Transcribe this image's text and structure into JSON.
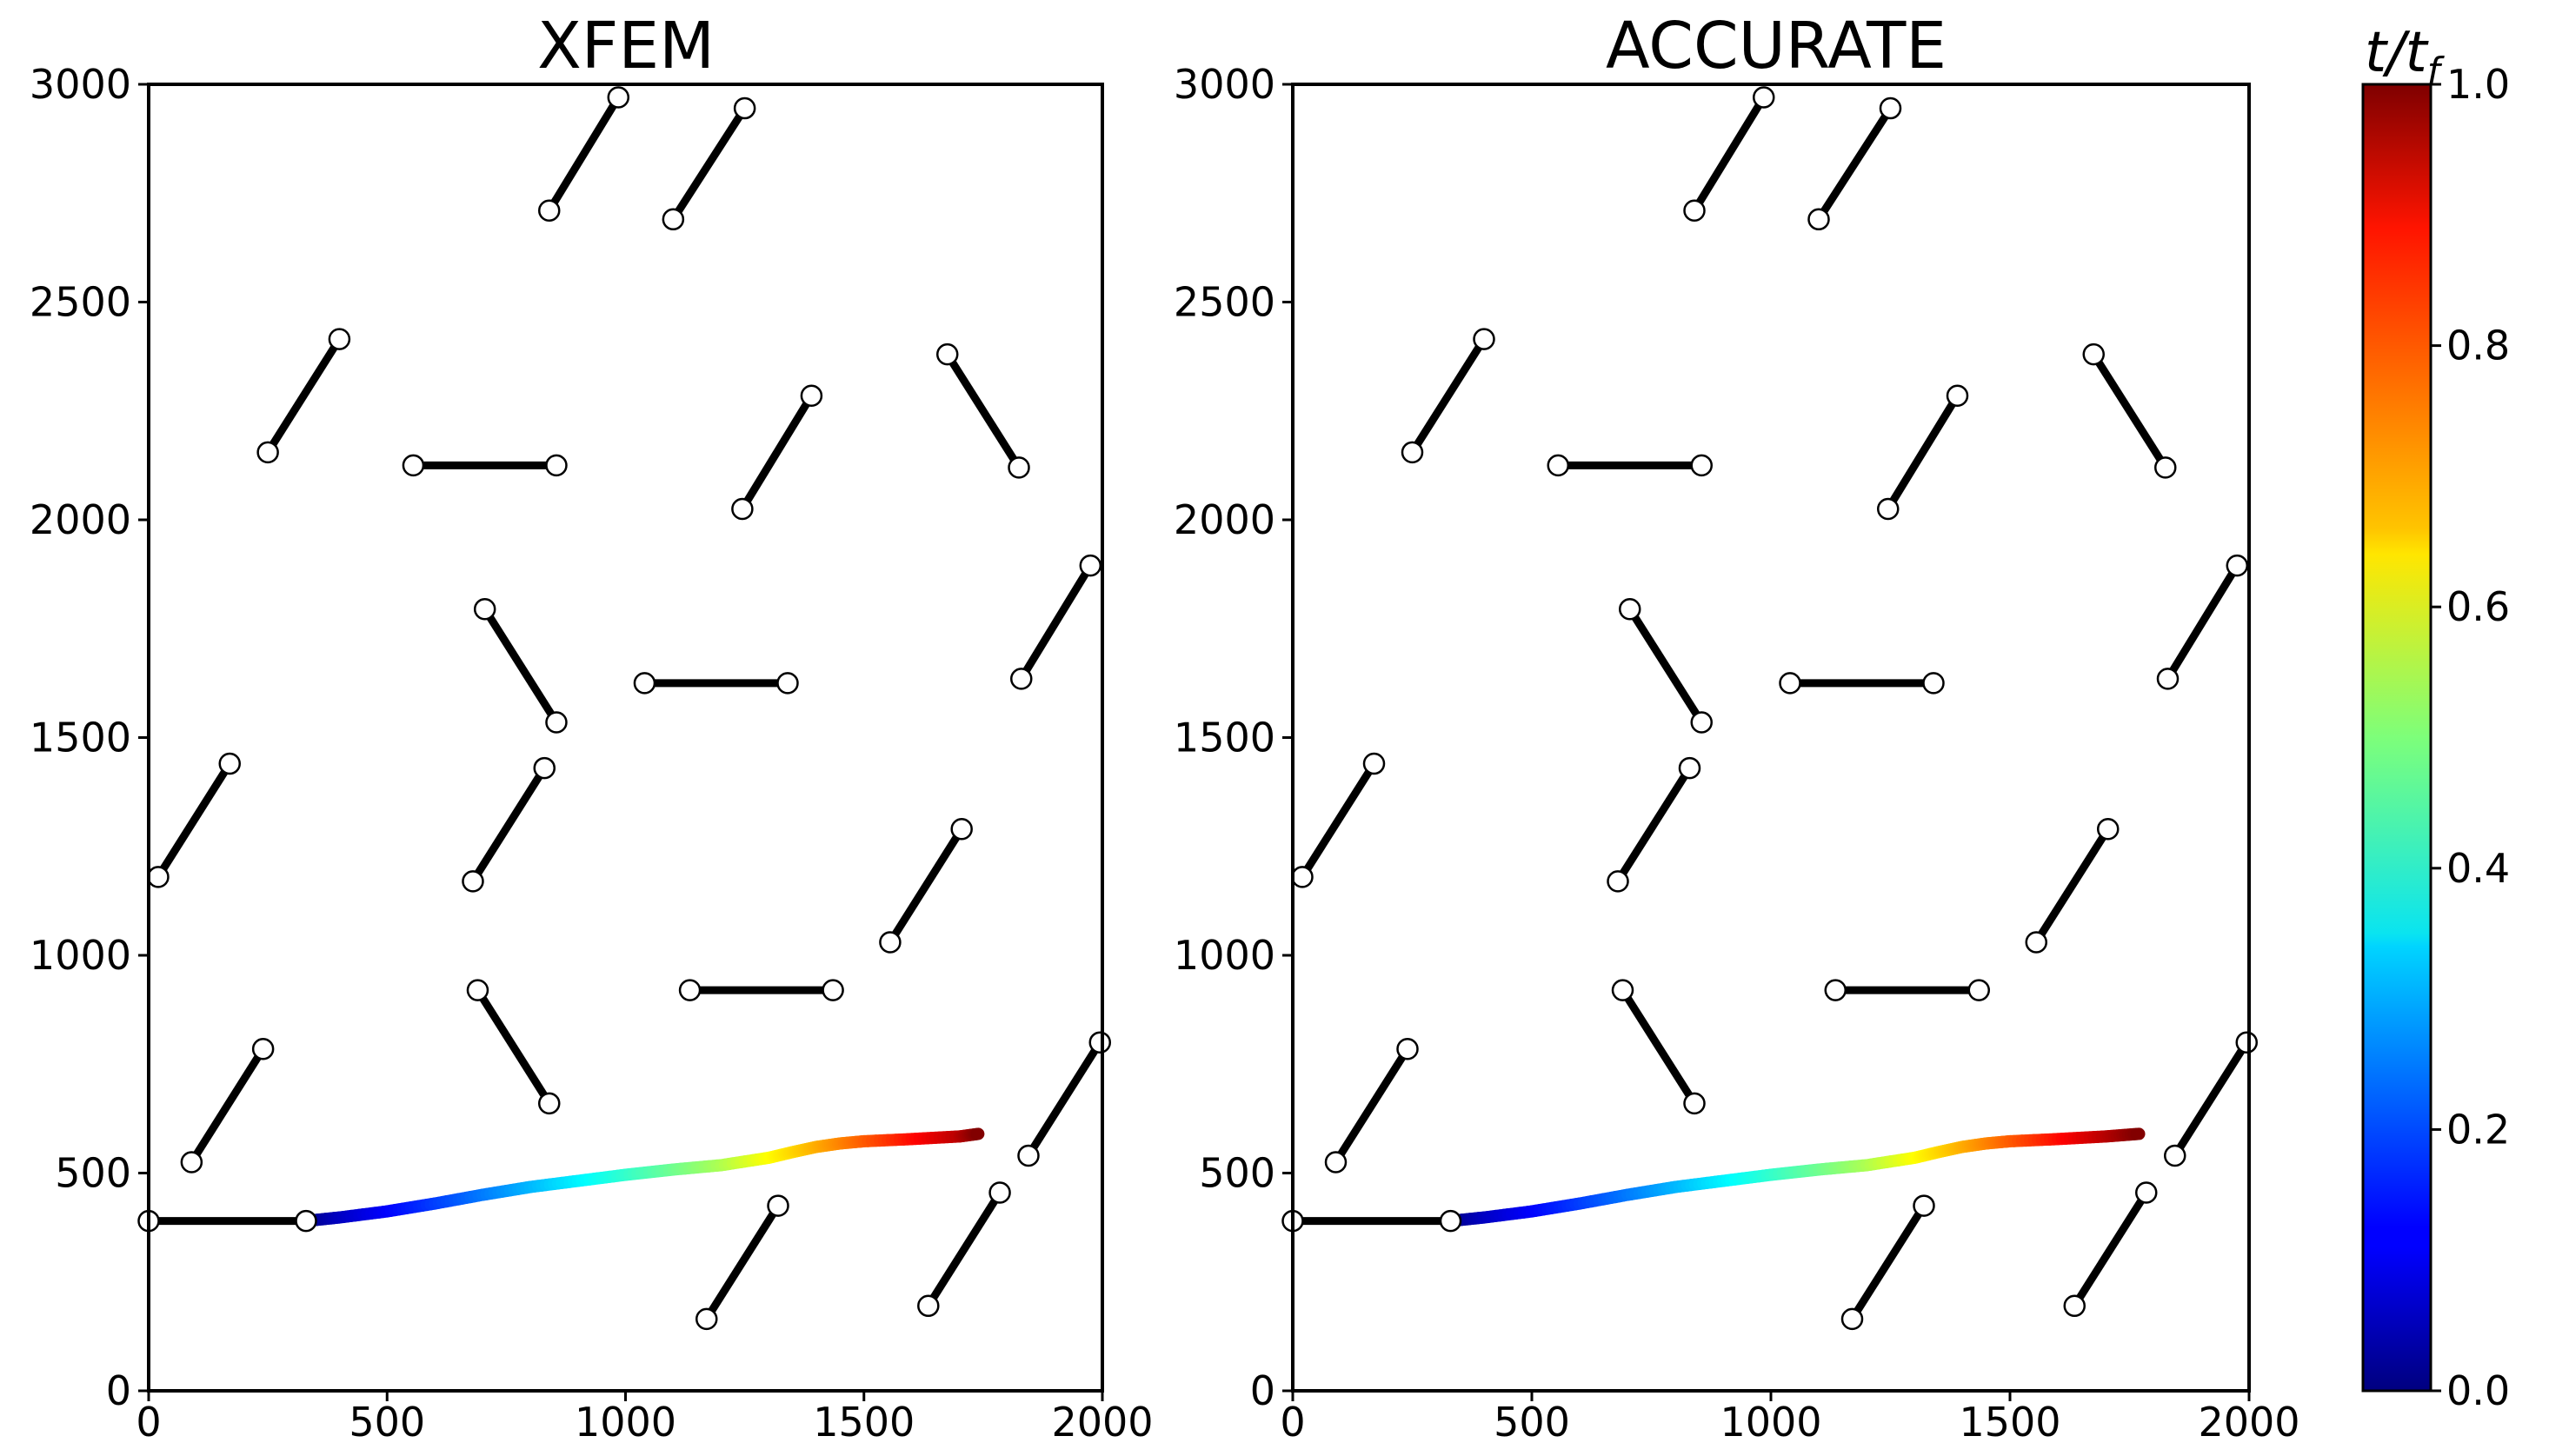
{
  "chart_data": [
    {
      "type": "line",
      "title": "XFEM",
      "xlim": [
        0,
        2000
      ],
      "ylim": [
        0,
        3000
      ],
      "xticks": [
        0,
        500,
        1000,
        1500,
        2000
      ],
      "yticks": [
        0,
        500,
        1000,
        1500,
        2000,
        2500,
        3000
      ],
      "grid": false,
      "natural_fractures": [
        {
          "x": [
            840,
            985
          ],
          "y": [
            2710,
            2970
          ]
        },
        {
          "x": [
            1100,
            1250
          ],
          "y": [
            2690,
            2945
          ]
        },
        {
          "x": [
            250,
            400
          ],
          "y": [
            2155,
            2415
          ]
        },
        {
          "x": [
            555,
            855
          ],
          "y": [
            2125,
            2125
          ]
        },
        {
          "x": [
            1245,
            1390
          ],
          "y": [
            2025,
            2285
          ]
        },
        {
          "x": [
            1675,
            1825
          ],
          "y": [
            2380,
            2120
          ]
        },
        {
          "x": [
            1830,
            1975
          ],
          "y": [
            1635,
            1895
          ]
        },
        {
          "x": [
            705,
            855
          ],
          "y": [
            1795,
            1535
          ]
        },
        {
          "x": [
            1040,
            1340
          ],
          "y": [
            1625,
            1625
          ]
        },
        {
          "x": [
            20,
            170
          ],
          "y": [
            1180,
            1440
          ]
        },
        {
          "x": [
            680,
            830
          ],
          "y": [
            1170,
            1430
          ]
        },
        {
          "x": [
            1555,
            1705
          ],
          "y": [
            1030,
            1290
          ]
        },
        {
          "x": [
            1135,
            1435
          ],
          "y": [
            920,
            920
          ]
        },
        {
          "x": [
            690,
            840
          ],
          "y": [
            920,
            660
          ]
        },
        {
          "x": [
            90,
            240
          ],
          "y": [
            525,
            785
          ]
        },
        {
          "x": [
            1845,
            1995
          ],
          "y": [
            540,
            800
          ]
        },
        {
          "x": [
            1170,
            1320
          ],
          "y": [
            165,
            425
          ]
        },
        {
          "x": [
            1635,
            1785
          ],
          "y": [
            195,
            455
          ]
        }
      ],
      "initial_fracture": {
        "x": [
          0,
          330
        ],
        "y": [
          390,
          390
        ]
      },
      "propagation_path": {
        "x": [
          330,
          400,
          500,
          600,
          700,
          800,
          900,
          1000,
          1100,
          1200,
          1300,
          1350,
          1400,
          1450,
          1500,
          1600,
          1700,
          1740
        ],
        "y": [
          390,
          398,
          412,
          430,
          450,
          468,
          482,
          496,
          508,
          518,
          535,
          548,
          560,
          568,
          573,
          578,
          584,
          590
        ],
        "t_over_tf": [
          0.0,
          0.06,
          0.12,
          0.18,
          0.24,
          0.3,
          0.36,
          0.42,
          0.48,
          0.54,
          0.62,
          0.66,
          0.7,
          0.74,
          0.78,
          0.86,
          0.94,
          1.0
        ]
      }
    },
    {
      "type": "line",
      "title": "ACCURATE",
      "xlim": [
        0,
        2000
      ],
      "ylim": [
        0,
        3000
      ],
      "xticks": [
        0,
        500,
        1000,
        1500,
        2000
      ],
      "yticks": [
        0,
        500,
        1000,
        1500,
        2000,
        2500,
        3000
      ],
      "grid": false,
      "natural_fractures": [
        {
          "x": [
            840,
            985
          ],
          "y": [
            2710,
            2970
          ]
        },
        {
          "x": [
            1100,
            1250
          ],
          "y": [
            2690,
            2945
          ]
        },
        {
          "x": [
            250,
            400
          ],
          "y": [
            2155,
            2415
          ]
        },
        {
          "x": [
            555,
            855
          ],
          "y": [
            2125,
            2125
          ]
        },
        {
          "x": [
            1245,
            1390
          ],
          "y": [
            2025,
            2285
          ]
        },
        {
          "x": [
            1675,
            1825
          ],
          "y": [
            2380,
            2120
          ]
        },
        {
          "x": [
            1830,
            1975
          ],
          "y": [
            1635,
            1895
          ]
        },
        {
          "x": [
            705,
            855
          ],
          "y": [
            1795,
            1535
          ]
        },
        {
          "x": [
            1040,
            1340
          ],
          "y": [
            1625,
            1625
          ]
        },
        {
          "x": [
            20,
            170
          ],
          "y": [
            1180,
            1440
          ]
        },
        {
          "x": [
            680,
            830
          ],
          "y": [
            1170,
            1430
          ]
        },
        {
          "x": [
            1555,
            1705
          ],
          "y": [
            1030,
            1290
          ]
        },
        {
          "x": [
            1135,
            1435
          ],
          "y": [
            920,
            920
          ]
        },
        {
          "x": [
            690,
            840
          ],
          "y": [
            920,
            660
          ]
        },
        {
          "x": [
            90,
            240
          ],
          "y": [
            525,
            785
          ]
        },
        {
          "x": [
            1845,
            1995
          ],
          "y": [
            540,
            800
          ]
        },
        {
          "x": [
            1170,
            1320
          ],
          "y": [
            165,
            425
          ]
        },
        {
          "x": [
            1635,
            1785
          ],
          "y": [
            195,
            455
          ]
        }
      ],
      "initial_fracture": {
        "x": [
          0,
          330
        ],
        "y": [
          390,
          390
        ]
      },
      "propagation_path": {
        "x": [
          330,
          400,
          500,
          600,
          700,
          800,
          900,
          1000,
          1100,
          1200,
          1300,
          1350,
          1400,
          1450,
          1500,
          1600,
          1700,
          1770
        ],
        "y": [
          390,
          398,
          412,
          430,
          450,
          468,
          482,
          496,
          508,
          518,
          535,
          548,
          560,
          568,
          573,
          578,
          584,
          590
        ],
        "t_over_tf": [
          0.0,
          0.06,
          0.12,
          0.18,
          0.24,
          0.3,
          0.36,
          0.42,
          0.48,
          0.54,
          0.62,
          0.66,
          0.7,
          0.74,
          0.78,
          0.86,
          0.94,
          1.0
        ]
      }
    }
  ],
  "colorbar": {
    "label_main": "t/t",
    "label_sub": "f",
    "range": [
      0.0,
      1.0
    ],
    "ticks": [
      "0.0",
      "0.2",
      "0.4",
      "0.6",
      "0.8",
      "1.0"
    ],
    "tick_values": [
      0.0,
      0.2,
      0.4,
      0.6,
      0.8,
      1.0
    ],
    "colormap": "jet"
  },
  "colors": {
    "fracture": "#000000",
    "marker_fill": "#ffffff",
    "marker_edge": "#000000"
  }
}
